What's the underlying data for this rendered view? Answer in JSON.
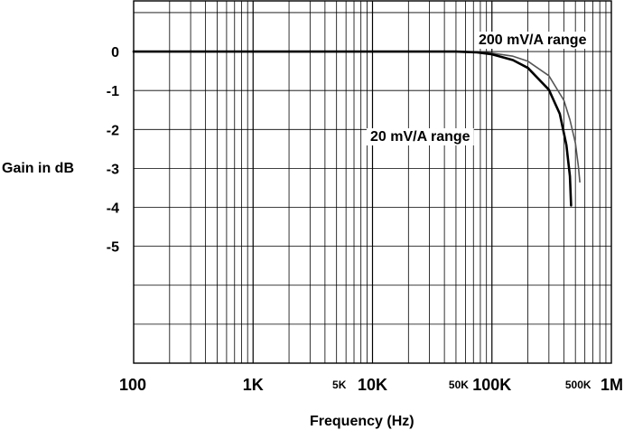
{
  "chart_data": {
    "type": "line",
    "title": "",
    "xlabel": "Frequency (Hz)",
    "ylabel": "Gain in dB",
    "x_scale": "log",
    "xlim": [
      100,
      1000000
    ],
    "ylim": [
      -8,
      1.3
    ],
    "grid": true,
    "y_tick_labels": [
      {
        "value": 0,
        "label": "0"
      },
      {
        "value": -1,
        "label": "-1"
      },
      {
        "value": -2,
        "label": "-2"
      },
      {
        "value": -3,
        "label": "-3"
      },
      {
        "value": -4,
        "label": "-4"
      },
      {
        "value": -5,
        "label": "-5"
      }
    ],
    "x_tick_labels": [
      {
        "value": 100,
        "label": "100",
        "size": "major"
      },
      {
        "value": 1000,
        "label": "1K",
        "size": "major"
      },
      {
        "value": 5000,
        "label": "5K",
        "size": "minor"
      },
      {
        "value": 10000,
        "label": "10K",
        "size": "major"
      },
      {
        "value": 50000,
        "label": "50K",
        "size": "minor"
      },
      {
        "value": 100000,
        "label": "100K",
        "size": "major"
      },
      {
        "value": 500000,
        "label": "500K",
        "size": "minor"
      },
      {
        "value": 1000000,
        "label": "1M",
        "size": "major"
      }
    ],
    "series": [
      {
        "name": "200 mV/A range",
        "color": "#555555",
        "points": [
          [
            100,
            0
          ],
          [
            10000,
            0
          ],
          [
            50000,
            0
          ],
          [
            80000,
            -0.01
          ],
          [
            100000,
            -0.04
          ],
          [
            150000,
            -0.12
          ],
          [
            200000,
            -0.25
          ],
          [
            300000,
            -0.62
          ],
          [
            400000,
            -1.25
          ],
          [
            450000,
            -1.75
          ],
          [
            500000,
            -2.35
          ],
          [
            530000,
            -2.95
          ],
          [
            545000,
            -3.35
          ]
        ]
      },
      {
        "name": "20 mV/A range",
        "color": "#000000",
        "points": [
          [
            100,
            0
          ],
          [
            10000,
            0
          ],
          [
            50000,
            0
          ],
          [
            75000,
            -0.02
          ],
          [
            100000,
            -0.07
          ],
          [
            150000,
            -0.22
          ],
          [
            200000,
            -0.42
          ],
          [
            300000,
            -0.98
          ],
          [
            370000,
            -1.6
          ],
          [
            420000,
            -2.4
          ],
          [
            450000,
            -3.2
          ],
          [
            460000,
            -3.95
          ]
        ]
      }
    ]
  }
}
